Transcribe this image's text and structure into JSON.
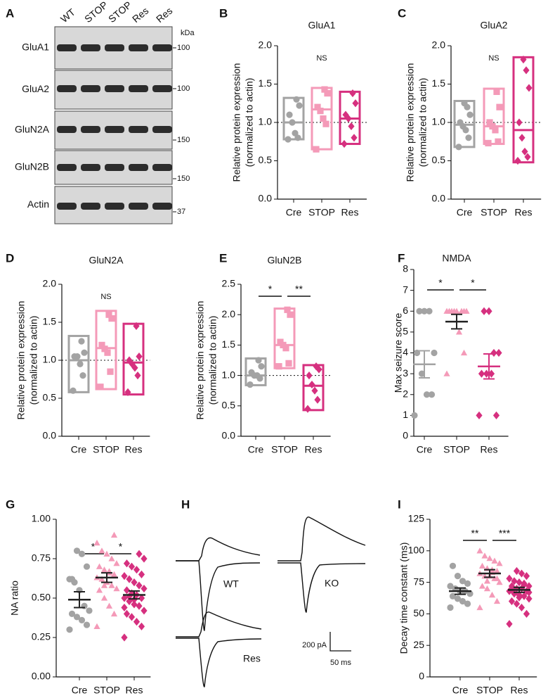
{
  "blot": {
    "panel_label": "A",
    "lanes": [
      "WT",
      "STOP",
      "STOP",
      "Res",
      "Res"
    ],
    "unit": "kDa",
    "rows": [
      {
        "name": "GluA1",
        "marker": 100
      },
      {
        "name": "GluA2",
        "marker": 100
      },
      {
        "name": "GluN2A",
        "marker": 150
      },
      {
        "name": "GluN2B",
        "marker": 150
      },
      {
        "name": "Actin",
        "marker": 37
      }
    ]
  },
  "traces": {
    "panel_label": "H",
    "labels": [
      "WT",
      "KO",
      "Res"
    ],
    "scale_current": "200 pA",
    "scale_time": "50 ms"
  },
  "chart_data": [
    {
      "type": "box",
      "panel_label": "B",
      "title": "GluA1",
      "ylabel": [
        "Relative protein expression",
        "(normalized to actin)"
      ],
      "categories": [
        "Cre",
        "STOP",
        "Res"
      ],
      "colors": [
        "#a3a3a3",
        "#f49ab8",
        "#d6307f"
      ],
      "markers": [
        "circle",
        "square",
        "diamond"
      ],
      "ylim": [
        0,
        2
      ],
      "yticks": [
        {
          "value": 0,
          "label": "0.0"
        },
        0.5,
        {
          "value": 1,
          "label": "1.0"
        },
        1.5,
        {
          "value": 2,
          "label": "2.0"
        }
      ],
      "refline": 1,
      "annotation": "NS",
      "groups": [
        {
          "low": 0.78,
          "high": 1.32,
          "median": 1.0,
          "points": [
            0.78,
            0.8,
            0.86,
            1.0,
            1.1,
            1.22,
            1.3
          ]
        },
        {
          "low": 0.65,
          "high": 1.45,
          "median": 1.17,
          "points": [
            0.65,
            0.98,
            1.05,
            1.15,
            1.2,
            1.38,
            1.43
          ]
        },
        {
          "low": 0.72,
          "high": 1.4,
          "median": 1.05,
          "points": [
            0.72,
            0.8,
            0.95,
            1.05,
            1.1,
            1.25,
            1.38
          ]
        }
      ]
    },
    {
      "type": "box",
      "panel_label": "C",
      "title": "GluA2",
      "ylabel": [
        "Relative protein expression",
        "(normalized to actin)"
      ],
      "categories": [
        "Cre",
        "STOP",
        "Res"
      ],
      "colors": [
        "#a3a3a3",
        "#f49ab8",
        "#d6307f"
      ],
      "markers": [
        "circle",
        "square",
        "diamond"
      ],
      "ylim": [
        0,
        2
      ],
      "yticks": [
        {
          "value": 0,
          "label": "0.0"
        },
        0.5,
        {
          "value": 1,
          "label": "1.0"
        },
        1.5,
        {
          "value": 2,
          "label": "2.0"
        }
      ],
      "refline": 1,
      "annotation": "NS",
      "groups": [
        {
          "low": 0.68,
          "high": 1.28,
          "median": 0.97,
          "points": [
            0.68,
            0.8,
            0.9,
            0.95,
            1.0,
            1.1,
            1.2,
            1.25
          ]
        },
        {
          "low": 0.72,
          "high": 1.44,
          "median": 0.95,
          "points": [
            0.73,
            0.75,
            0.9,
            0.95,
            1.0,
            1.2,
            1.4
          ]
        },
        {
          "low": 0.48,
          "high": 1.85,
          "median": 0.9,
          "points": [
            0.5,
            0.55,
            0.62,
            0.8,
            1.0,
            1.45,
            1.68,
            1.82
          ]
        }
      ]
    },
    {
      "type": "box",
      "panel_label": "D",
      "title": "GluN2A",
      "ylabel": [
        "Relative protein expression",
        "(normalized to actin)"
      ],
      "categories": [
        "Cre",
        "STOP",
        "Res"
      ],
      "colors": [
        "#a3a3a3",
        "#f49ab8",
        "#d6307f"
      ],
      "markers": [
        "circle",
        "square",
        "diamond"
      ],
      "ylim": [
        0,
        2
      ],
      "yticks": [
        {
          "value": 0,
          "label": "0.0"
        },
        0.5,
        {
          "value": 1,
          "label": "1.0"
        },
        1.5,
        {
          "value": 2,
          "label": "2.0"
        }
      ],
      "refline": 1,
      "annotation": "NS",
      "groups": [
        {
          "low": 0.58,
          "high": 1.32,
          "median": 1.0,
          "points": [
            0.6,
            0.8,
            0.95,
            1.05,
            1.05,
            1.1,
            1.25
          ]
        },
        {
          "low": 0.62,
          "high": 1.65,
          "median": 1.16,
          "points": [
            0.65,
            0.85,
            1.1,
            1.15,
            1.2,
            1.55,
            1.6
          ]
        },
        {
          "low": 0.55,
          "high": 1.48,
          "median": 0.97,
          "points": [
            0.58,
            0.8,
            0.9,
            0.95,
            1.0,
            1.05,
            1.45
          ]
        }
      ]
    },
    {
      "type": "box",
      "panel_label": "E",
      "title": "GluN2B",
      "ylabel": [
        "Relative protein expression",
        "(normalized to actin)"
      ],
      "categories": [
        "Cre",
        "STOP",
        "Res"
      ],
      "colors": [
        "#a3a3a3",
        "#f49ab8",
        "#d6307f"
      ],
      "markers": [
        "circle",
        "square",
        "diamond"
      ],
      "ylim": [
        0,
        2.5
      ],
      "yticks": [
        {
          "value": 0,
          "label": "0.0"
        },
        0.5,
        {
          "value": 1,
          "label": "1.0"
        },
        1.5,
        {
          "value": 2,
          "label": "2.0"
        },
        2.5
      ],
      "refline": 1,
      "comparisons": [
        {
          "pair": [
            0,
            1
          ],
          "label": "*"
        },
        {
          "pair": [
            1,
            2
          ],
          "label": "**"
        }
      ],
      "groups": [
        {
          "low": 0.84,
          "high": 1.28,
          "median": 1.0,
          "points": [
            0.85,
            0.95,
            1.0,
            1.0,
            1.05,
            1.15,
            1.25
          ]
        },
        {
          "low": 1.12,
          "high": 2.1,
          "median": 1.5,
          "points": [
            1.15,
            1.2,
            1.45,
            1.5,
            1.55,
            2.0,
            2.08
          ]
        },
        {
          "low": 0.43,
          "high": 1.17,
          "median": 0.83,
          "points": [
            0.45,
            0.6,
            0.75,
            0.85,
            1.0,
            1.1,
            1.15
          ]
        }
      ]
    },
    {
      "type": "strip",
      "panel_label": "F",
      "title": "NMDA",
      "ylabel": [
        "Max seizure score"
      ],
      "categories": [
        "Cre",
        "STOP",
        "Res"
      ],
      "colors": [
        "#a3a3a3",
        "#f49ab8",
        "#d6307f"
      ],
      "error_colors": [
        "#a3a3a3",
        "#222222",
        "#d6307f"
      ],
      "markers": [
        "circle",
        "triangle",
        "diamond"
      ],
      "ylim": [
        0,
        8
      ],
      "yticks": [
        0,
        1,
        2,
        3,
        4,
        5,
        6,
        7,
        8
      ],
      "comparisons": [
        {
          "pair": [
            0,
            1
          ],
          "label": "*"
        },
        {
          "pair": [
            1,
            2
          ],
          "label": "*"
        }
      ],
      "groups": [
        {
          "mean": 3.45,
          "sem": 0.65,
          "points": [
            1,
            2,
            2,
            3,
            4,
            4,
            6,
            6,
            6
          ]
        },
        {
          "mean": 5.5,
          "sem": 0.35,
          "points": [
            3,
            4,
            5,
            6,
            6,
            6,
            6,
            6,
            6,
            6,
            6
          ]
        },
        {
          "mean": 3.35,
          "sem": 0.6,
          "points": [
            1,
            1,
            3,
            3,
            3,
            4,
            4,
            6,
            6
          ]
        }
      ]
    },
    {
      "type": "strip",
      "panel_label": "G",
      "ylabel": [
        "NA ratio"
      ],
      "categories": [
        "Cre",
        "STOP",
        "Res"
      ],
      "colors": [
        "#a3a3a3",
        "#f49ab8",
        "#d6307f"
      ],
      "error_colors": [
        "#222222",
        "#222222",
        "#222222"
      ],
      "markers": [
        "circle",
        "triangle",
        "diamond"
      ],
      "ylim": [
        0,
        1
      ],
      "yticks": [
        {
          "value": 0,
          "label": "0.00"
        },
        0.25,
        {
          "value": 0.5,
          "label": "0.50"
        },
        0.75,
        {
          "value": 1,
          "label": "1.00"
        }
      ],
      "comparisons": [
        {
          "pair": [
            0,
            1
          ],
          "label": "*"
        },
        {
          "pair": [
            1,
            2
          ],
          "label": "*"
        }
      ],
      "groups": [
        {
          "mean": 0.49,
          "sem": 0.05,
          "points": [
            0.3,
            0.33,
            0.36,
            0.38,
            0.4,
            0.42,
            0.45,
            0.55,
            0.6,
            0.62,
            0.7,
            0.78,
            0.8,
            0.62
          ]
        },
        {
          "mean": 0.63,
          "sem": 0.03,
          "points": [
            0.32,
            0.4,
            0.45,
            0.5,
            0.55,
            0.56,
            0.58,
            0.6,
            0.62,
            0.63,
            0.65,
            0.66,
            0.68,
            0.7,
            0.72,
            0.75,
            0.78,
            0.8,
            0.85,
            0.9,
            0.67,
            0.58
          ]
        },
        {
          "mean": 0.52,
          "sem": 0.025,
          "points": [
            0.25,
            0.32,
            0.35,
            0.38,
            0.4,
            0.42,
            0.45,
            0.46,
            0.48,
            0.5,
            0.5,
            0.52,
            0.53,
            0.55,
            0.56,
            0.58,
            0.6,
            0.62,
            0.64,
            0.65,
            0.68,
            0.7,
            0.72,
            0.75,
            0.78,
            0.49,
            0.51,
            0.44
          ]
        }
      ]
    },
    {
      "type": "strip",
      "panel_label": "I",
      "ylabel": [
        "Decay time constant (ms)"
      ],
      "categories": [
        "Cre",
        "STOP",
        "Res"
      ],
      "colors": [
        "#a3a3a3",
        "#f49ab8",
        "#d6307f"
      ],
      "error_colors": [
        "#222222",
        "#222222",
        "#222222"
      ],
      "markers": [
        "circle",
        "triangle",
        "diamond"
      ],
      "ylim": [
        0,
        125
      ],
      "yticks": [
        0,
        25,
        50,
        75,
        100,
        125
      ],
      "comparisons": [
        {
          "pair": [
            0,
            1
          ],
          "label": "**"
        },
        {
          "pair": [
            1,
            2
          ],
          "label": "***"
        }
      ],
      "groups": [
        {
          "mean": 68,
          "sem": 2.5,
          "points": [
            55,
            58,
            60,
            62,
            64,
            66,
            68,
            68,
            70,
            72,
            74,
            76,
            80,
            88
          ]
        },
        {
          "mean": 82,
          "sem": 3,
          "points": [
            55,
            60,
            65,
            70,
            72,
            75,
            78,
            80,
            80,
            82,
            84,
            85,
            86,
            88,
            90,
            92,
            94,
            96,
            100,
            78,
            83,
            76
          ]
        },
        {
          "mean": 69,
          "sem": 2,
          "points": [
            42,
            50,
            55,
            58,
            60,
            62,
            64,
            65,
            66,
            68,
            68,
            70,
            70,
            72,
            72,
            74,
            75,
            76,
            78,
            80,
            82,
            84,
            69,
            67,
            73,
            63
          ]
        }
      ]
    }
  ]
}
